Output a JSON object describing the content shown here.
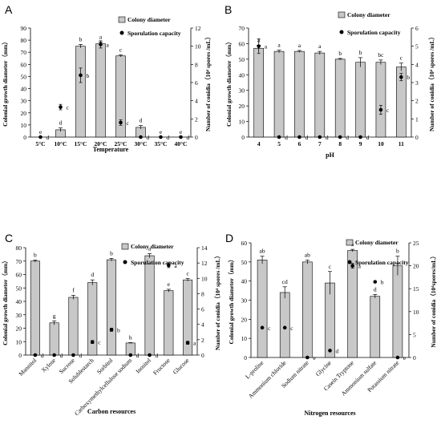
{
  "chart_data": [
    {
      "panel": "A",
      "type": "bar",
      "categories": [
        "5°C",
        "10°C",
        "15°C",
        "20°C",
        "25°C",
        "30°C",
        "35°C",
        "40°C"
      ],
      "xlabel": "Temperature",
      "ylabel": "Colonial growth diameter（mm）",
      "y2label": "Number of conidia（10⁴ spores /mL）",
      "ylim": [
        0,
        90
      ],
      "yticks": [
        0,
        10,
        20,
        30,
        40,
        50,
        60,
        70,
        80,
        90
      ],
      "y2lim": [
        0,
        12
      ],
      "y2ticks": [
        0,
        2,
        4,
        6,
        8,
        10,
        12
      ],
      "legend": [
        "Colony diameter",
        "Sporulation capacity"
      ],
      "series": [
        {
          "name": "Colony diameter",
          "axis": "left",
          "values": [
            0,
            6,
            75,
            77,
            67,
            8,
            0,
            0
          ],
          "errors": [
            0,
            1.5,
            1.5,
            1.5,
            0.8,
            1.5,
            0,
            0
          ],
          "letters": [
            "e",
            "d",
            "b",
            "a",
            "c",
            "d",
            "e",
            "e"
          ]
        },
        {
          "name": "Sporulation capacity",
          "axis": "right",
          "values": [
            0,
            3.3,
            6.8,
            10.2,
            1.6,
            0,
            0,
            0
          ],
          "errors": [
            0,
            0.3,
            0.8,
            0.4,
            0.3,
            0,
            0,
            0
          ],
          "letters": [
            "d",
            "c",
            "b",
            "a",
            "c",
            "d",
            "d",
            "d"
          ]
        }
      ]
    },
    {
      "panel": "B",
      "type": "bar",
      "categories": [
        "4",
        "5",
        "6",
        "7",
        "8",
        "9",
        "10",
        "11"
      ],
      "xlabel": "pH",
      "ylabel": "Colonial growth diameter（mm）",
      "y2label": "Number of conidia（10⁴ spores /mL）",
      "ylim": [
        0,
        70
      ],
      "yticks": [
        0,
        10,
        20,
        30,
        40,
        50,
        60,
        70
      ],
      "y2lim": [
        0,
        6
      ],
      "y2ticks": [
        0,
        1,
        2,
        3,
        4,
        5,
        6
      ],
      "legend": [
        "Colony diameter",
        "Sporulation capacity"
      ],
      "series": [
        {
          "name": "Colony diameter",
          "axis": "left",
          "values": [
            57,
            55,
            55,
            54,
            50,
            48,
            48,
            45
          ],
          "errors": [
            2,
            0.8,
            0.6,
            1,
            0.5,
            3,
            1.5,
            2.5
          ],
          "letters": [
            "a",
            "a",
            "a",
            "a",
            "b",
            "b",
            "bc",
            "c"
          ]
        },
        {
          "name": "Sporulation capacity",
          "axis": "right",
          "values": [
            5.0,
            0,
            0,
            0,
            0,
            0,
            1.5,
            3.3
          ],
          "errors": [
            0.4,
            0,
            0,
            0,
            0,
            0,
            0.25,
            0.2
          ],
          "letters": [
            "a",
            "d",
            "d",
            "d",
            "d",
            "d",
            "c",
            "b"
          ]
        }
      ]
    },
    {
      "panel": "C",
      "type": "bar",
      "categories": [
        "Mannitol",
        "Xylose",
        "Sucrose",
        "Solublestarch",
        "Sorbitol",
        "Carboxymethylcellulose sodium",
        "Inositol",
        "Fructose",
        "Glucose"
      ],
      "xlabel": "Carbon resources",
      "ylabel": "Colonial growth diameter（mm）",
      "y2label": "Number of conidia（10⁴ spores /mL）",
      "ylim": [
        0,
        80
      ],
      "yticks": [
        0,
        10,
        20,
        30,
        40,
        50,
        60,
        70,
        80
      ],
      "y2lim": [
        0,
        14
      ],
      "y2ticks": [
        0,
        2,
        4,
        6,
        8,
        10,
        12,
        14
      ],
      "legend": [
        "Colony diameter",
        "Sporulation capacity"
      ],
      "series": [
        {
          "name": "Colony diameter",
          "axis": "left",
          "values": [
            70,
            24,
            43,
            54,
            71,
            9,
            74,
            48,
            56
          ],
          "errors": [
            0.8,
            1.5,
            1.5,
            2,
            1,
            0.3,
            1.5,
            1,
            1
          ],
          "letters": [
            "b",
            "g",
            "f",
            "d",
            "b",
            "h",
            "a",
            "e",
            "c"
          ]
        },
        {
          "name": "Sporulation capacity",
          "axis": "right",
          "values": [
            0,
            0,
            0,
            1.7,
            3.3,
            0,
            0,
            11.7,
            1.6
          ],
          "errors": [
            0,
            0,
            0,
            0.2,
            0.2,
            0,
            0,
            0.3,
            0.2
          ],
          "letters": [
            "d",
            "d",
            "d",
            "c",
            "b",
            "d",
            "d",
            "a",
            "a"
          ]
        }
      ]
    },
    {
      "panel": "D",
      "type": "bar",
      "categories": [
        "L-proline",
        "Ammonium chloride",
        "Sodium nitrate",
        "Glycine",
        "Casein Tryptone",
        "Ammonium sulfate",
        "Potassium nitrate"
      ],
      "xlabel": "Nitrogen resources",
      "ylabel": "Colonial growth diameter（mm）",
      "y2label": "Number of conidia（10⁴spores/mL）",
      "ylim": [
        0,
        60
      ],
      "yticks": [
        0,
        10,
        20,
        30,
        40,
        50,
        60
      ],
      "y2lim": [
        0,
        25
      ],
      "y2ticks": [
        0,
        5,
        10,
        15,
        20,
        25
      ],
      "legend": [
        "Colony diameter",
        "Sporulation capacity"
      ],
      "series": [
        {
          "name": "Colony diameter",
          "axis": "left",
          "values": [
            51,
            34,
            50,
            39,
            56,
            32,
            48
          ],
          "errors": [
            2,
            3,
            1,
            6,
            0.6,
            1,
            5
          ],
          "letters": [
            "ab",
            "cd",
            "ab",
            "c",
            "a",
            "d",
            "b"
          ]
        },
        {
          "name": "Sporulation capacity",
          "axis": "right",
          "values": [
            6.5,
            6.5,
            0,
            1.5,
            20,
            16.5,
            0
          ],
          "errors": [
            0,
            0,
            0,
            0,
            0.5,
            0,
            0
          ],
          "letters": [
            "c",
            "c",
            "e",
            "d",
            "a",
            "b",
            "e"
          ]
        }
      ]
    }
  ]
}
